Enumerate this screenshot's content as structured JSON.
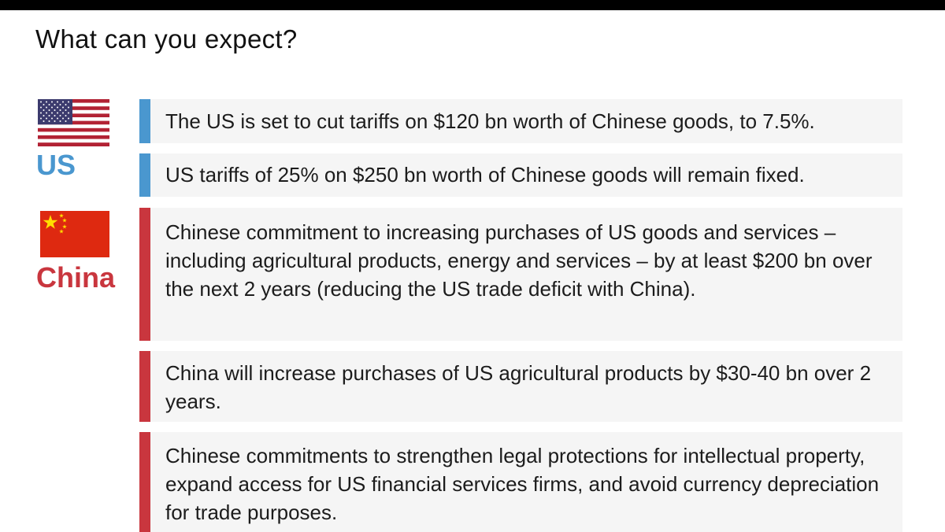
{
  "header": {
    "title": "What can you expect?"
  },
  "colors": {
    "us_accent": "#4a97cf",
    "china_accent": "#c9363e",
    "card_background": "#f5f5f5",
    "top_bar": "#000000"
  },
  "us": {
    "label": "US",
    "flag_icon": "us-flag-icon",
    "items": [
      "The US is set to cut tariffs on $120 bn worth of Chinese goods, to 7.5%.",
      "US tariffs of 25% on $250 bn worth of Chinese goods will remain fixed."
    ]
  },
  "china": {
    "label": "China",
    "flag_icon": "china-flag-icon",
    "items": [
      "Chinese commitment to increasing purchases of US goods and services – including agricultural products, energy and services – by at least $200 bn over the next 2 years (reducing the US trade deficit with China).",
      "China will increase purchases of US agricultural products by $30-40 bn over 2 years.",
      "Chinese commitments to strengthen legal protections for intellectual property, expand access for US financial services firms, and avoid currency depreciation for trade purposes."
    ]
  }
}
